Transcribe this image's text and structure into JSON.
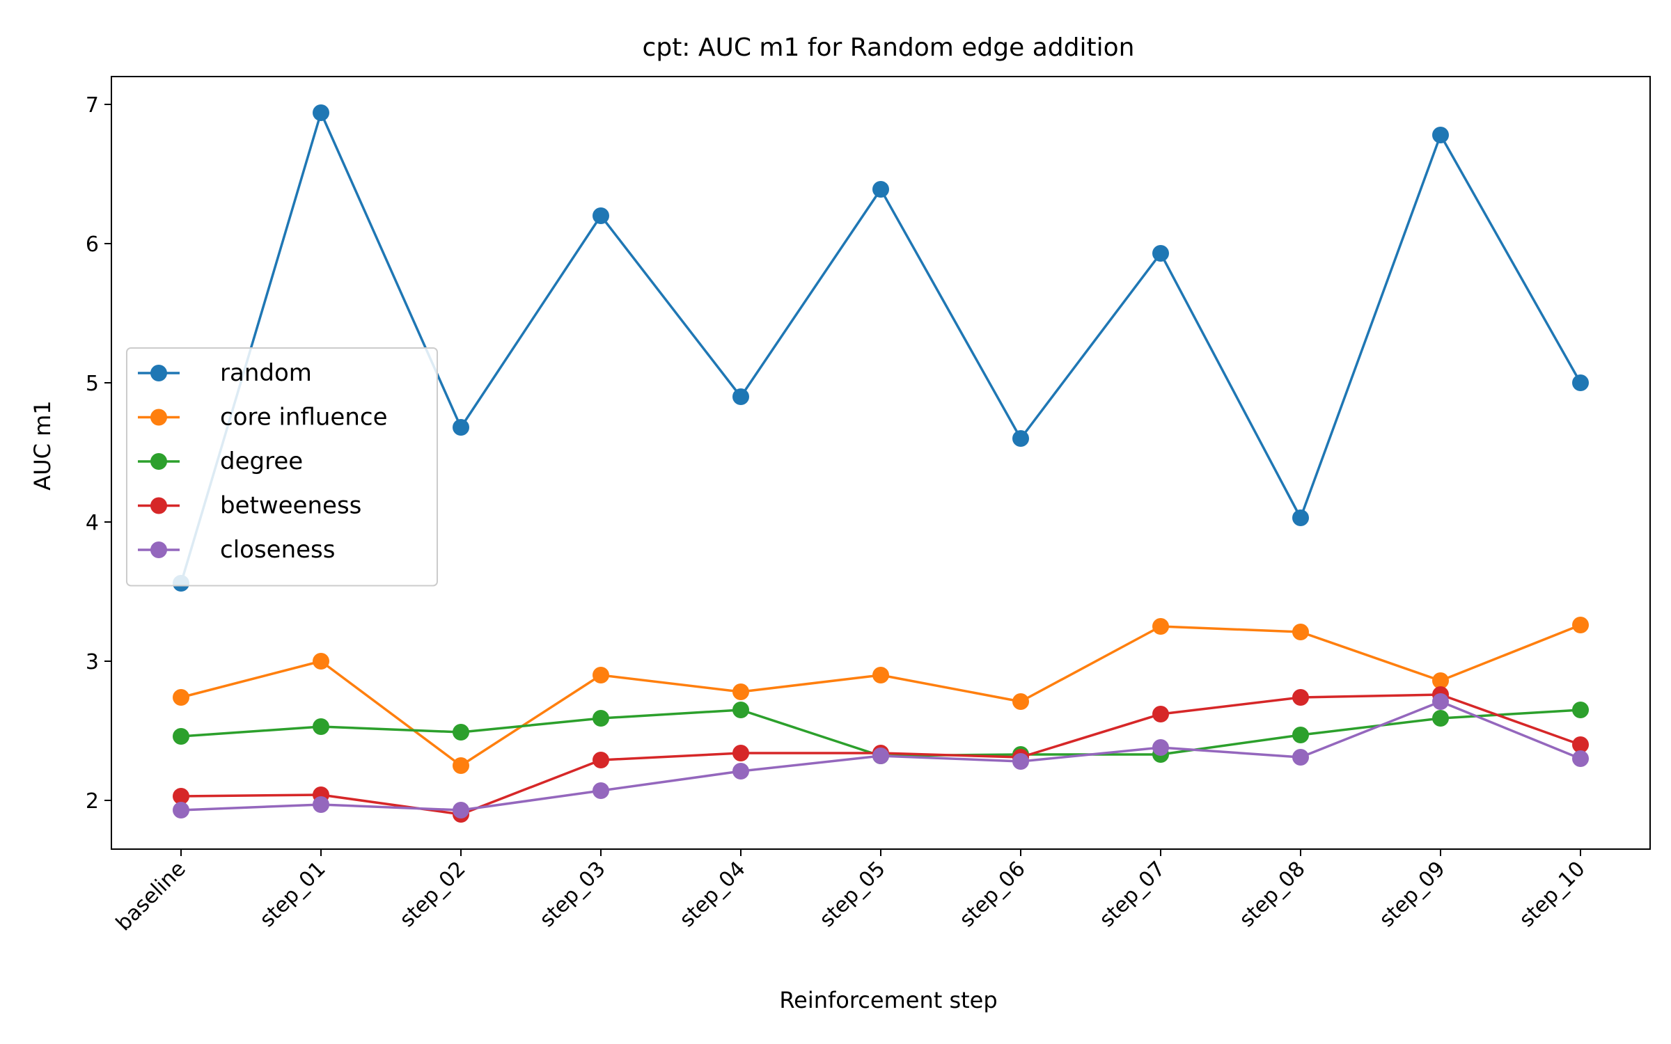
{
  "chart_data": {
    "type": "line",
    "title": "cpt: AUC m1 for Random edge addition",
    "xlabel": "Reinforcement step",
    "ylabel": "AUC m1",
    "categories": [
      "baseline",
      "step_01",
      "step_02",
      "step_03",
      "step_04",
      "step_05",
      "step_06",
      "step_07",
      "step_08",
      "step_09",
      "step_10"
    ],
    "ylim": [
      1.65,
      7.2
    ],
    "yticks": [
      2,
      3,
      4,
      5,
      6,
      7
    ],
    "ytick_labels": [
      "2",
      "3",
      "4",
      "5",
      "6",
      "7"
    ],
    "grid": false,
    "legend_position": "center-left",
    "series": [
      {
        "name": "random",
        "color": "#1f77b4",
        "values": [
          3.56,
          6.94,
          4.68,
          6.2,
          4.9,
          6.39,
          4.6,
          5.93,
          4.03,
          6.78,
          5.0
        ]
      },
      {
        "name": "core influence",
        "color": "#ff7f0e",
        "values": [
          2.74,
          3.0,
          2.25,
          2.9,
          2.78,
          2.9,
          2.71,
          3.25,
          3.21,
          2.86,
          3.26
        ]
      },
      {
        "name": "degree",
        "color": "#2ca02c",
        "values": [
          2.46,
          2.53,
          2.49,
          2.59,
          2.65,
          2.32,
          2.33,
          2.33,
          2.47,
          2.59,
          2.65
        ]
      },
      {
        "name": "betweeness",
        "color": "#d62728",
        "values": [
          2.03,
          2.04,
          1.9,
          2.29,
          2.34,
          2.34,
          2.31,
          2.62,
          2.74,
          2.76,
          2.4
        ]
      },
      {
        "name": "closeness",
        "color": "#9467bd",
        "values": [
          1.93,
          1.97,
          1.93,
          2.07,
          2.21,
          2.32,
          2.28,
          2.38,
          2.31,
          2.71,
          2.3
        ]
      }
    ]
  }
}
